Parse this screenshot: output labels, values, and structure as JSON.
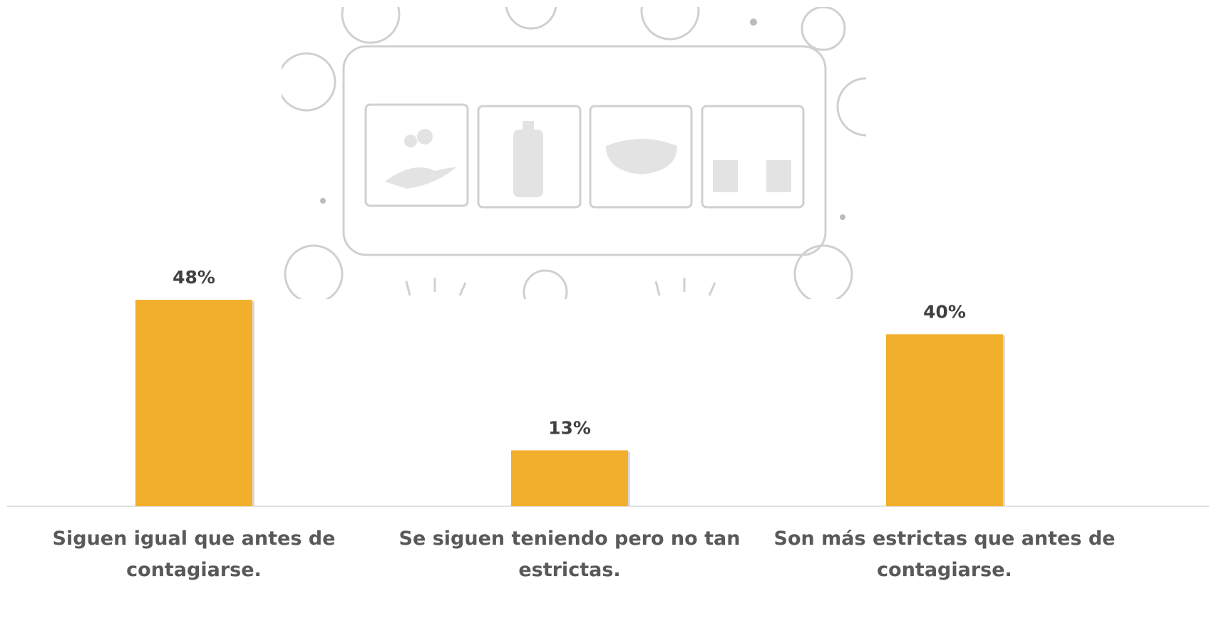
{
  "chart_data": {
    "type": "bar",
    "categories": [
      "Siguen igual que antes de contagiarse.",
      "Se siguen teniendo pero no tan estrictas.",
      "Son más estrictas que antes de contagiarse."
    ],
    "values": [
      48,
      13,
      40
    ],
    "value_labels": [
      "48%",
      "13%",
      "40%"
    ],
    "color": "#f2af2c",
    "ylim": [
      0,
      50
    ]
  }
}
